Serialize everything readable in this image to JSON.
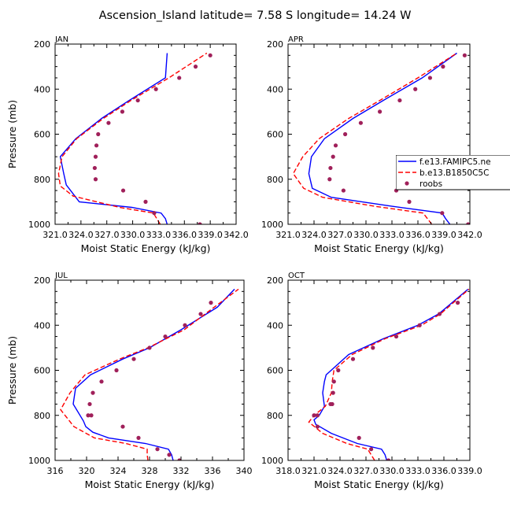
{
  "figure_title": "Ascension_Island  latitude= 7.58 S longitude= 14.24 W",
  "colors": {
    "model": "#0000ff",
    "coupled": "#ff0000",
    "obs": "#a0205a"
  },
  "chart_data": [
    {
      "type": "line",
      "panel": "JAN",
      "title": "JAN",
      "xlabel": "Moist Static Energy (kJ/kg)",
      "ylabel": "Pressure (mb)",
      "xlim": [
        321.0,
        342.0
      ],
      "ylim": [
        1000,
        200
      ],
      "y_inverted": true,
      "xticks": [
        321.0,
        324.0,
        327.0,
        330.0,
        333.0,
        336.0,
        339.0,
        342.0
      ],
      "xtick_labels": [
        "321.0",
        "324.0",
        "327.0",
        "330.0",
        "333.0",
        "336.0",
        "339.0",
        "342.0"
      ],
      "yticks": [
        200,
        400,
        600,
        800,
        1000
      ],
      "ytick_labels": [
        "200",
        "400",
        "600",
        "800",
        "1000"
      ],
      "legend": false,
      "series": [
        {
          "name": "f.e13.FAMIPC5.ne",
          "style": "solid",
          "color": "#0000ff",
          "x": [
            334.0,
            333.8,
            333.3,
            329.9,
            323.8,
            322.8,
            322.3,
            322.0,
            321.6,
            323.4,
            326.4,
            329.6,
            333.8,
            334.0
          ],
          "y": [
            1000,
            975,
            950,
            925,
            900,
            850,
            825,
            775,
            700,
            620,
            530,
            450,
            350,
            240
          ]
        },
        {
          "name": "b.e13.B1850C5C",
          "style": "dashed",
          "color": "#ff0000",
          "x": [
            333.2,
            332.8,
            332.4,
            328.5,
            323.1,
            321.6,
            321.4,
            321.8,
            323.5,
            326.6,
            329.8,
            334.2,
            338.6
          ],
          "y": [
            1000,
            975,
            950,
            925,
            875,
            830,
            775,
            700,
            620,
            530,
            450,
            350,
            240
          ]
        },
        {
          "name": "roobs",
          "style": "dots",
          "color": "#a0205a",
          "x": [
            339.0,
            337.3,
            335.4,
            332.7,
            330.6,
            328.8,
            327.2,
            326.0,
            325.8,
            325.7,
            325.6,
            325.7,
            328.9,
            331.5,
            332.5,
            337.8
          ],
          "y": [
            250,
            300,
            350,
            400,
            450,
            500,
            550,
            600,
            650,
            700,
            750,
            800,
            850,
            900,
            950,
            1000
          ]
        }
      ]
    },
    {
      "type": "line",
      "panel": "APR",
      "title": "APR",
      "xlabel": "Moist Static Energy (kJ/kg)",
      "ylabel": "",
      "xlim": [
        321.0,
        342.0
      ],
      "ylim": [
        1000,
        200
      ],
      "y_inverted": true,
      "xticks": [
        321.0,
        324.0,
        327.0,
        330.0,
        333.0,
        336.0,
        339.0,
        342.0
      ],
      "xtick_labels": [
        "321.0",
        "324.0",
        "327.0",
        "330.0",
        "333.0",
        "336.0",
        "339.0",
        "342.0"
      ],
      "yticks": [
        200,
        400,
        600,
        800,
        1000
      ],
      "ytick_labels": [
        "200",
        "400",
        "600",
        "800",
        "1000"
      ],
      "legend": true,
      "legend_placement": "right",
      "series": [
        {
          "name": "f.e13.FAMIPC5.ne",
          "style": "solid",
          "color": "#0000ff",
          "x": [
            339.7,
            339.2,
            338.8,
            333.0,
            326.0,
            323.8,
            323.4,
            323.7,
            325.2,
            328.5,
            332.0,
            336.5,
            340.5
          ],
          "y": [
            1000,
            975,
            950,
            920,
            880,
            840,
            775,
            700,
            620,
            530,
            450,
            350,
            240
          ]
        },
        {
          "name": "b.e13.B1850C5C",
          "style": "dashed",
          "color": "#ff0000",
          "x": [
            337.6,
            337.1,
            336.6,
            331.0,
            325.0,
            322.8,
            321.6,
            322.7,
            324.6,
            328.0,
            331.6,
            336.0,
            340.5
          ],
          "y": [
            1000,
            975,
            950,
            920,
            880,
            840,
            775,
            700,
            620,
            530,
            450,
            350,
            240
          ]
        },
        {
          "name": "roobs",
          "style": "dots",
          "color": "#a0205a",
          "x": [
            341.4,
            338.9,
            337.4,
            335.7,
            333.9,
            331.6,
            329.4,
            327.6,
            326.5,
            326.2,
            325.9,
            325.8,
            327.4,
            333.5,
            335.0,
            338.8,
            341.8
          ],
          "y": [
            250,
            300,
            350,
            400,
            450,
            500,
            550,
            600,
            650,
            700,
            750,
            800,
            850,
            850,
            900,
            950,
            1000
          ]
        }
      ]
    },
    {
      "type": "line",
      "panel": "JUL",
      "title": "JUL",
      "xlabel": "Moist Static Energy (kJ/kg)",
      "ylabel": "Pressure (mb)",
      "xlim": [
        316,
        340
      ],
      "ylim": [
        1000,
        200
      ],
      "y_inverted": true,
      "xticks": [
        316,
        320,
        324,
        328,
        332,
        336,
        340
      ],
      "xtick_labels": [
        "316",
        "320",
        "324",
        "328",
        "332",
        "336",
        "340"
      ],
      "yticks": [
        200,
        400,
        600,
        800,
        1000
      ],
      "ytick_labels": [
        "200",
        "400",
        "600",
        "800",
        "1000"
      ],
      "legend": false,
      "series": [
        {
          "name": "f.e13.FAMIPC5.ne",
          "style": "solid",
          "color": "#0000ff",
          "x": [
            331.0,
            330.8,
            330.4,
            327.5,
            322.8,
            320.8,
            319.9,
            319.6,
            318.3,
            318.6,
            320.5,
            324.6,
            328.0,
            332.0,
            336.6,
            338.8
          ],
          "y": [
            1000,
            975,
            950,
            925,
            900,
            875,
            850,
            825,
            750,
            680,
            620,
            550,
            500,
            420,
            320,
            240
          ]
        },
        {
          "name": "b.e13.B1850C5C",
          "style": "dashed",
          "color": "#ff0000",
          "x": [
            327.8,
            327.7,
            327.7,
            325.0,
            321.0,
            318.4,
            316.7,
            317.9,
            319.8,
            324.2,
            327.8,
            332.4,
            336.2,
            339.3
          ],
          "y": [
            1000,
            975,
            950,
            925,
            900,
            850,
            775,
            700,
            620,
            550,
            500,
            420,
            320,
            240
          ]
        },
        {
          "name": "roobs",
          "style": "dots",
          "color": "#a0205a",
          "x": [
            335.8,
            334.5,
            332.5,
            330.0,
            328.0,
            326.0,
            323.8,
            321.9,
            320.8,
            320.4,
            320.2,
            320.6,
            324.6,
            326.6,
            329.0,
            330.5,
            331.8
          ],
          "y": [
            300,
            350,
            400,
            450,
            500,
            550,
            600,
            650,
            700,
            750,
            800,
            800,
            850,
            900,
            950,
            975,
            1000
          ]
        }
      ]
    },
    {
      "type": "line",
      "panel": "OCT",
      "title": "OCT",
      "xlabel": "Moist Static Energy (kJ/kg)",
      "ylabel": "",
      "xlim": [
        318.0,
        339.0
      ],
      "ylim": [
        1000,
        200
      ],
      "y_inverted": true,
      "xticks": [
        318.0,
        321.0,
        324.0,
        327.0,
        330.0,
        333.0,
        336.0,
        339.0
      ],
      "xtick_labels": [
        "318.0",
        "321.0",
        "324.0",
        "327.0",
        "330.0",
        "333.0",
        "336.0",
        "339.0"
      ],
      "yticks": [
        200,
        400,
        600,
        800,
        1000
      ],
      "ytick_labels": [
        "200",
        "400",
        "600",
        "800",
        "1000"
      ],
      "legend": false,
      "series": [
        {
          "name": "f.e13.FAMIPC5.ne",
          "style": "solid",
          "color": "#0000ff",
          "x": [
            329.4,
            329.2,
            328.8,
            326.0,
            323.0,
            321.2,
            321.0,
            321.6,
            322.2,
            322.0,
            322.2,
            322.4,
            325.0,
            329.0,
            333.0,
            335.4,
            338.8
          ],
          "y": [
            1000,
            975,
            950,
            925,
            880,
            840,
            820,
            800,
            760,
            700,
            650,
            620,
            530,
            460,
            400,
            350,
            240
          ]
        },
        {
          "name": "b.e13.B1850C5C",
          "style": "dashed",
          "color": "#ff0000",
          "x": [
            328.0,
            327.6,
            327.2,
            324.8,
            322.0,
            320.4,
            321.0,
            322.3,
            323.0,
            323.1,
            323.3,
            325.4,
            329.2,
            333.4,
            335.6,
            338.9
          ],
          "y": [
            1000,
            975,
            950,
            925,
            880,
            830,
            800,
            760,
            700,
            650,
            600,
            530,
            460,
            400,
            350,
            240
          ]
        },
        {
          "name": "roobs",
          "style": "dots",
          "color": "#a0205a",
          "x": [
            337.6,
            335.5,
            333.2,
            330.5,
            327.8,
            325.5,
            323.8,
            323.3,
            323.2,
            323.1,
            322.9,
            321.4,
            321.0,
            321.4,
            326.2,
            327.6,
            329.6
          ],
          "y": [
            300,
            350,
            400,
            450,
            500,
            550,
            600,
            650,
            700,
            750,
            750,
            800,
            800,
            850,
            900,
            950,
            1000
          ]
        }
      ]
    }
  ]
}
